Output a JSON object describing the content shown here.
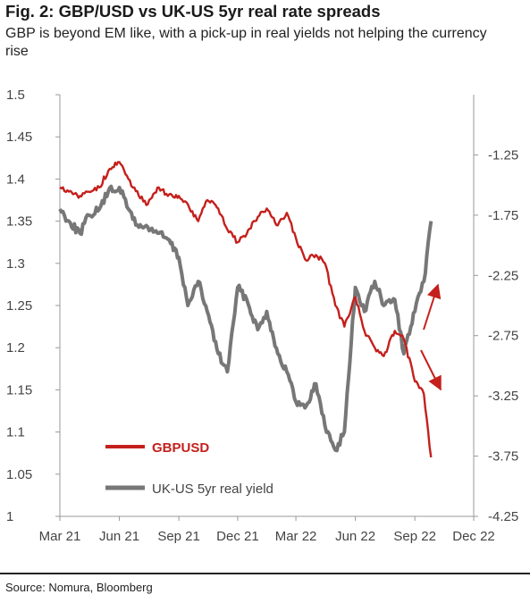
{
  "header": {
    "title": "Fig. 2: GBP/USD vs UK-US 5yr real rate spreads",
    "subtitle": "GBP is beyond EM like, with a pick-up in real yields not helping the currency rise"
  },
  "footer": {
    "source": "Source: Nomura, Bloomberg"
  },
  "colors": {
    "gbpusd": "#c4201c",
    "spread": "#777777",
    "axis": "#999999",
    "text": "#444444"
  },
  "chart_data": {
    "type": "line",
    "title": "Fig. 2: GBP/USD vs UK-US 5yr real rate spreads",
    "x_ticks": [
      "Mar 21",
      "Jun 21",
      "Sep 21",
      "Dec 21",
      "Mar 22",
      "Jun 22",
      "Sep 22",
      "Dec 22"
    ],
    "y_left": {
      "ticks": [
        "1",
        "1.05",
        "1.1",
        "1.15",
        "1.2",
        "1.25",
        "1.3",
        "1.35",
        "1.4",
        "1.45",
        "1.5"
      ],
      "range": [
        1.0,
        1.5
      ]
    },
    "y_right": {
      "ticks": [
        "-1.25",
        "-1.75",
        "-2.25",
        "-2.75",
        "-3.25",
        "-3.75",
        "-4.25"
      ],
      "range": [
        -4.25,
        -0.75
      ]
    },
    "legend": {
      "placement": "bottom-left"
    },
    "series": [
      {
        "name": "GBPUSD",
        "axis": "left",
        "points": [
          [
            "2021-03-01",
            1.39
          ],
          [
            "2021-03-15",
            1.385
          ],
          [
            "2021-04-01",
            1.38
          ],
          [
            "2021-04-15",
            1.385
          ],
          [
            "2021-05-01",
            1.39
          ],
          [
            "2021-05-15",
            1.41
          ],
          [
            "2021-06-01",
            1.42
          ],
          [
            "2021-06-15",
            1.4
          ],
          [
            "2021-07-01",
            1.38
          ],
          [
            "2021-07-15",
            1.37
          ],
          [
            "2021-08-01",
            1.39
          ],
          [
            "2021-08-15",
            1.38
          ],
          [
            "2021-09-01",
            1.38
          ],
          [
            "2021-09-15",
            1.37
          ],
          [
            "2021-10-01",
            1.35
          ],
          [
            "2021-10-15",
            1.375
          ],
          [
            "2021-11-01",
            1.365
          ],
          [
            "2021-11-15",
            1.34
          ],
          [
            "2021-12-01",
            1.325
          ],
          [
            "2021-12-15",
            1.335
          ],
          [
            "2022-01-01",
            1.355
          ],
          [
            "2022-01-15",
            1.365
          ],
          [
            "2022-02-01",
            1.345
          ],
          [
            "2022-02-15",
            1.36
          ],
          [
            "2022-03-01",
            1.33
          ],
          [
            "2022-03-15",
            1.305
          ],
          [
            "2022-04-01",
            1.31
          ],
          [
            "2022-04-15",
            1.3
          ],
          [
            "2022-05-01",
            1.25
          ],
          [
            "2022-05-15",
            1.225
          ],
          [
            "2022-06-01",
            1.26
          ],
          [
            "2022-06-15",
            1.22
          ],
          [
            "2022-07-01",
            1.2
          ],
          [
            "2022-07-15",
            1.19
          ],
          [
            "2022-08-01",
            1.22
          ],
          [
            "2022-08-15",
            1.21
          ],
          [
            "2022-09-01",
            1.16
          ],
          [
            "2022-09-15",
            1.145
          ],
          [
            "2022-09-26",
            1.07
          ]
        ]
      },
      {
        "name": "UK-US 5yr real yield",
        "axis": "right",
        "points": [
          [
            "2021-03-01",
            -1.7
          ],
          [
            "2021-03-15",
            -1.8
          ],
          [
            "2021-04-01",
            -1.9
          ],
          [
            "2021-04-15",
            -1.75
          ],
          [
            "2021-05-01",
            -1.7
          ],
          [
            "2021-05-15",
            -1.55
          ],
          [
            "2021-06-01",
            -1.52
          ],
          [
            "2021-06-15",
            -1.7
          ],
          [
            "2021-07-01",
            -1.85
          ],
          [
            "2021-07-15",
            -1.85
          ],
          [
            "2021-08-01",
            -1.9
          ],
          [
            "2021-08-15",
            -1.95
          ],
          [
            "2021-09-01",
            -2.1
          ],
          [
            "2021-09-15",
            -2.5
          ],
          [
            "2021-10-01",
            -2.3
          ],
          [
            "2021-10-15",
            -2.55
          ],
          [
            "2021-11-01",
            -2.9
          ],
          [
            "2021-11-15",
            -3.05
          ],
          [
            "2021-12-01",
            -2.35
          ],
          [
            "2021-12-15",
            -2.45
          ],
          [
            "2022-01-01",
            -2.7
          ],
          [
            "2022-01-15",
            -2.55
          ],
          [
            "2022-02-01",
            -2.9
          ],
          [
            "2022-02-15",
            -3.05
          ],
          [
            "2022-03-01",
            -3.3
          ],
          [
            "2022-03-15",
            -3.35
          ],
          [
            "2022-04-01",
            -3.15
          ],
          [
            "2022-04-15",
            -3.5
          ],
          [
            "2022-05-01",
            -3.7
          ],
          [
            "2022-05-15",
            -3.55
          ],
          [
            "2022-06-01",
            -2.35
          ],
          [
            "2022-06-15",
            -2.55
          ],
          [
            "2022-07-01",
            -2.3
          ],
          [
            "2022-07-15",
            -2.5
          ],
          [
            "2022-08-01",
            -2.45
          ],
          [
            "2022-08-15",
            -2.9
          ],
          [
            "2022-09-01",
            -2.55
          ],
          [
            "2022-09-15",
            -2.3
          ],
          [
            "2022-09-26",
            -1.8
          ]
        ]
      }
    ]
  }
}
